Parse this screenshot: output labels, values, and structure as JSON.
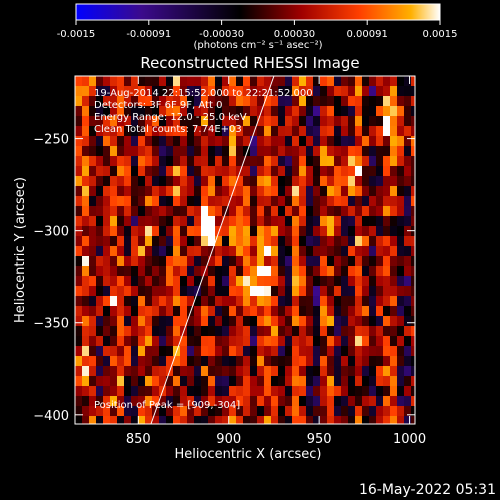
{
  "chart_data": {
    "type": "heatmap",
    "title": "Reconstructed RHESSI Image",
    "xlabel": "Heliocentric X (arcsec)",
    "ylabel": "Heliocentric Y (arcsec)",
    "xlim": [
      815,
      1003
    ],
    "ylim": [
      -405,
      -216
    ],
    "x_ticks": [
      850,
      900,
      950,
      1000
    ],
    "y_ticks": [
      -250,
      -300,
      -350,
      -400
    ],
    "colorbar": {
      "min": -0.0015,
      "max": 0.0015,
      "tick_labels": [
        "-0.0015",
        "-0.00091",
        "-0.00030",
        "0.00030",
        "0.00091",
        "0.0015"
      ],
      "unit_label": "(photons cm⁻² s⁻¹ asec⁻²)",
      "colors": [
        "#0000ff",
        "#3b0a8c",
        "#000000",
        "#a00000",
        "#ff4000",
        "#ffb000",
        "#ffffff"
      ]
    },
    "annotations": [
      "19-Aug-2014 22:15:52.000 to 22:21:52.000",
      "Detectors: 3F 6F 9F, Att 0",
      "Energy Range: 12.0 - 25.0 keV",
      "Clean    Total counts: 7.74E+03"
    ],
    "peak_label": "Position of Peak = [909,-304]",
    "limb_line": {
      "x": [
        857,
        925
      ],
      "y": [
        -405,
        -216
      ]
    },
    "notable_peaks": [
      {
        "x": 909,
        "y": -304
      },
      {
        "x": 912,
        "y": -330
      },
      {
        "x": 990,
        "y": -240
      },
      {
        "x": 962,
        "y": -265
      },
      {
        "x": 888,
        "y": -297
      }
    ],
    "grid": false
  },
  "footer": {
    "timestamp": "16-May-2022 05:31"
  }
}
